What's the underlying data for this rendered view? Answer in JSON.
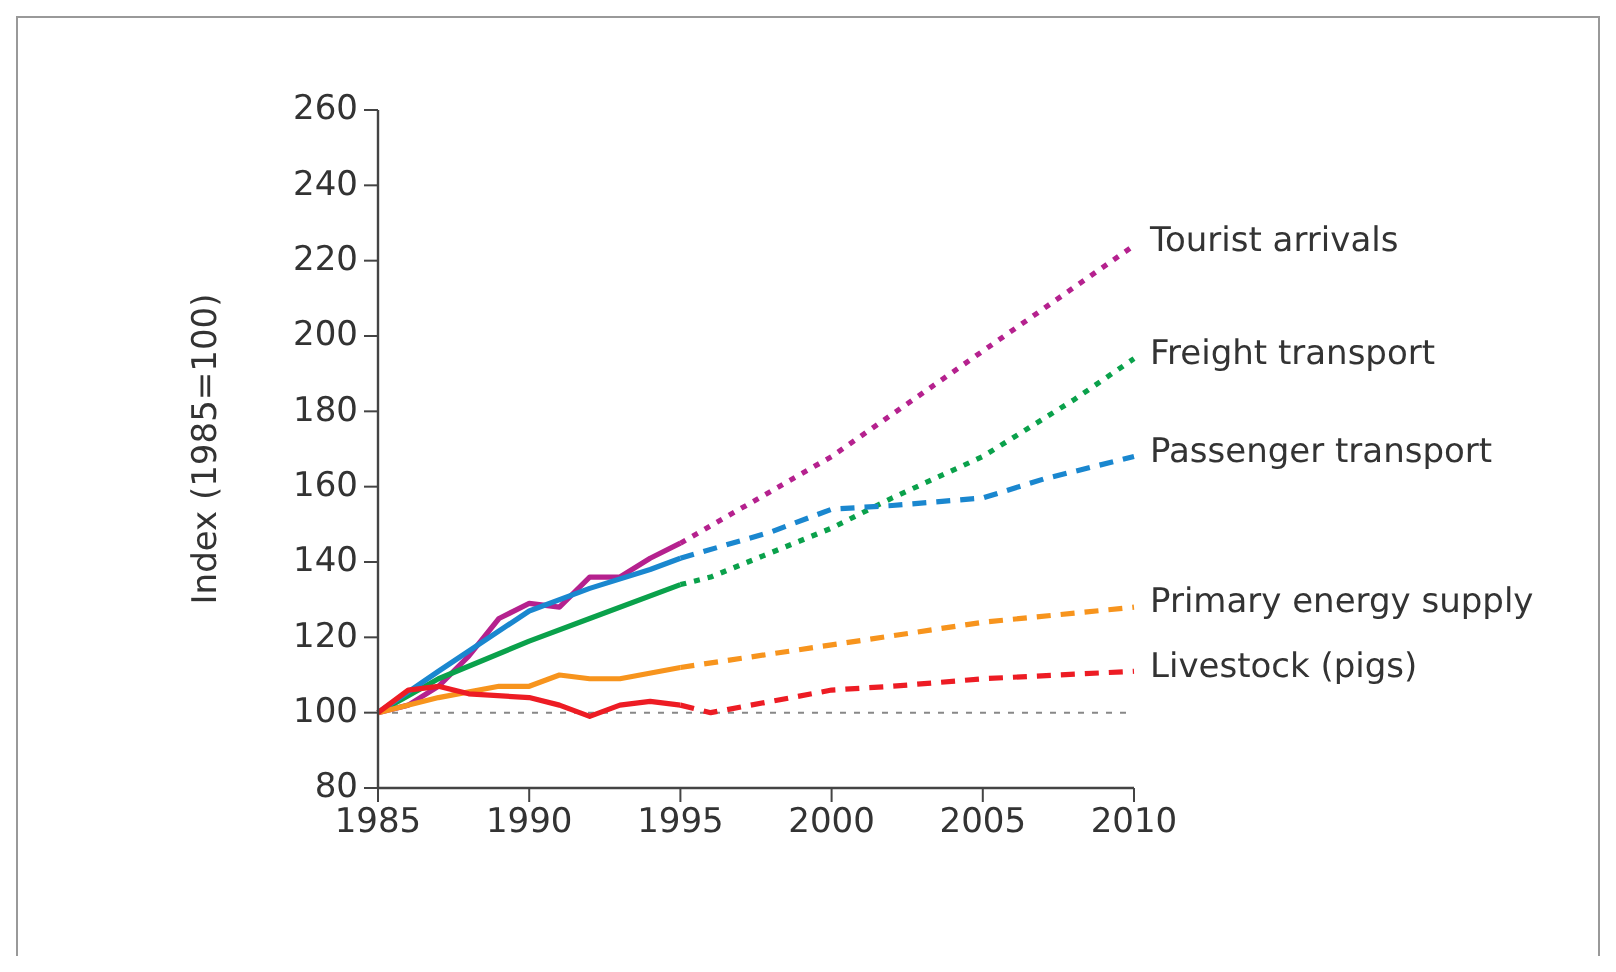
{
  "chart_data": {
    "type": "line",
    "ylabel": "Index (1985=100)",
    "xlim": [
      1985,
      2010
    ],
    "xticks": [
      1985,
      1990,
      1995,
      2000,
      2005,
      2010
    ],
    "ylim": [
      80,
      260
    ],
    "yticks": [
      80,
      100,
      120,
      140,
      160,
      180,
      200,
      220,
      240,
      260
    ],
    "grid": false,
    "ref_lines": [
      {
        "axis": "y",
        "value": 100,
        "color": "#888888",
        "line_style": "dotted"
      }
    ],
    "series": [
      {
        "color": "#b5218e",
        "line_style": "solid",
        "x": [
          1985,
          1986,
          1987,
          1988,
          1989,
          1990,
          1991,
          1992,
          1993,
          1994,
          1995
        ],
        "values": [
          100,
          102,
          107,
          115,
          125,
          129,
          128,
          136,
          136,
          141,
          145
        ]
      },
      {
        "name": "Tourist arrivals",
        "color": "#b5218e",
        "line_style": "dotted",
        "x": [
          1995,
          2000,
          2005,
          2010
        ],
        "values": [
          145,
          168,
          196,
          224
        ]
      },
      {
        "color": "#0aa14b",
        "line_style": "solid",
        "x": [
          1985,
          1987,
          1990,
          1992,
          1995
        ],
        "values": [
          100,
          109,
          119,
          125,
          134
        ]
      },
      {
        "name": "Freight transport",
        "color": "#0aa14b",
        "line_style": "dotted",
        "x": [
          1995,
          1996,
          2000,
          2002,
          2005,
          2008,
          2010
        ],
        "values": [
          134,
          136,
          149,
          157,
          168,
          183,
          194
        ]
      },
      {
        "color": "#1a87cf",
        "line_style": "solid",
        "x": [
          1985,
          1987,
          1990,
          1992,
          1994,
          1995
        ],
        "values": [
          100,
          111,
          127,
          133,
          138,
          141
        ]
      },
      {
        "name": "Passenger transport",
        "color": "#1a87cf",
        "line_style": "dashed",
        "x": [
          1995,
          1998,
          2000,
          2002,
          2005,
          2007,
          2010
        ],
        "values": [
          141,
          148,
          154,
          155,
          157,
          162,
          168
        ]
      },
      {
        "color": "#f7941d",
        "line_style": "solid",
        "x": [
          1985,
          1987,
          1989,
          1990,
          1991,
          1992,
          1993,
          1995
        ],
        "values": [
          100,
          104,
          107,
          107,
          110,
          109,
          109,
          112
        ]
      },
      {
        "name": "Primary energy supply",
        "color": "#f7941d",
        "line_style": "dashed",
        "x": [
          1995,
          2000,
          2005,
          2010
        ],
        "values": [
          112,
          118,
          124,
          128
        ]
      },
      {
        "color": "#ed1c24",
        "line_style": "solid",
        "x": [
          1985,
          1986,
          1987,
          1988,
          1990,
          1991,
          1992,
          1993,
          1994,
          1995
        ],
        "values": [
          100,
          106,
          107,
          105,
          104,
          102,
          99,
          102,
          103,
          102
        ]
      },
      {
        "name": "Livestock (pigs)",
        "color": "#ed1c24",
        "line_style": "dashed",
        "x": [
          1995,
          1996,
          1998,
          2000,
          2002,
          2005,
          2010
        ],
        "values": [
          102,
          100,
          103,
          106,
          107,
          109,
          111
        ]
      }
    ]
  }
}
